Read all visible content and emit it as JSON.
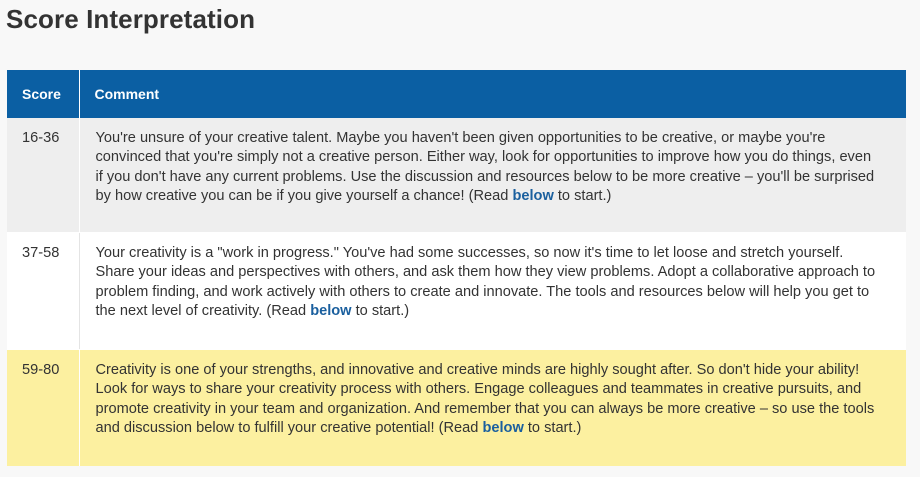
{
  "page": {
    "title": "Score Interpretation"
  },
  "table": {
    "headers": {
      "score": "Score",
      "comment": "Comment"
    },
    "rows": [
      {
        "score": "16-36",
        "comment_before": "You're unsure of your creative talent. Maybe you haven't been given opportunities to be creative, or maybe you're convinced that you're simply not a creative person. Either way, look for opportunities to improve how you do things, even if you don't have any current problems. Use the discussion and resources below to be more creative – you'll be surprised by how creative you can be if you give yourself a chance! (Read ",
        "link": "below",
        "comment_after": " to start.)",
        "background": "#eeeeee"
      },
      {
        "score": "37-58",
        "comment_before": "Your creativity is a \"work in progress.\" You've had some successes, so now it's time to let loose and stretch yourself. Share your ideas and perspectives with others, and ask them how they view problems. Adopt a collaborative approach to problem finding, and work actively with others to create and innovate. The tools and resources below will help you get to the next level of creativity. (Read ",
        "link": "below",
        "comment_after": " to start.)",
        "background": "#ffffff"
      },
      {
        "score": "59-80",
        "comment_before": "Creativity is one of your strengths, and innovative and creative minds are highly sought after. So don't hide your ability! Look for ways to share your creativity process with others. Engage colleagues and teammates in creative pursuits, and promote creativity in your team and organization. And remember that you can always be more creative – so use the tools and discussion below to fulfill your creative potential! (Read ",
        "link": "below",
        "comment_after": " to start.)",
        "background": "#fcf0a0"
      }
    ]
  },
  "colors": {
    "header_bg": "#0b5fa3",
    "header_text": "#ffffff",
    "link": "#1a5f9e",
    "highlight_row": "#fcf0a0"
  }
}
